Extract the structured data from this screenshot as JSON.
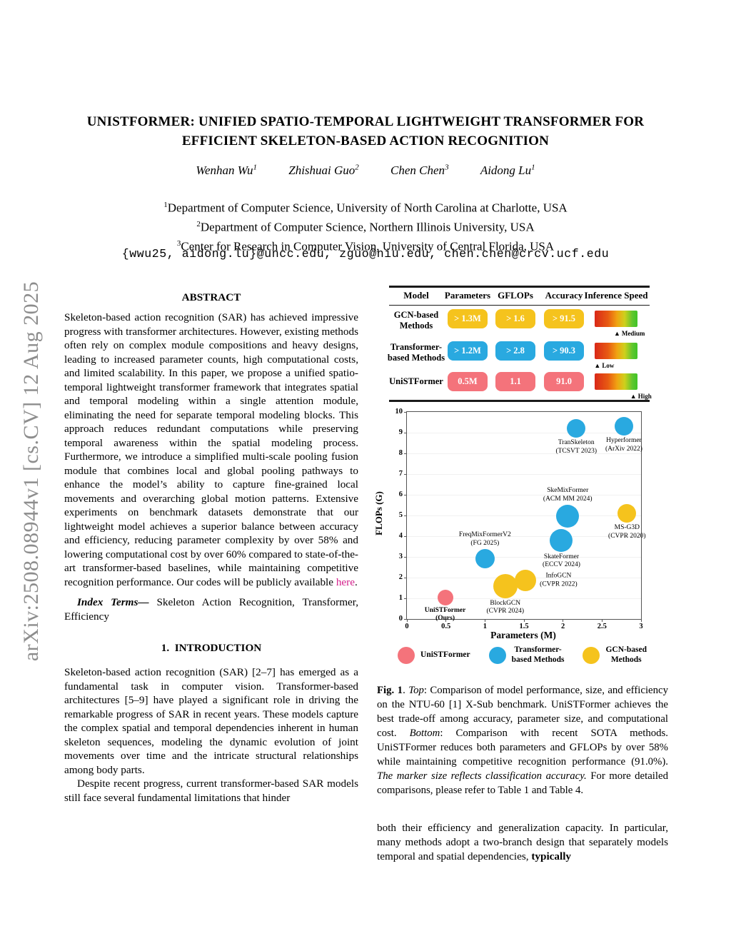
{
  "watermark": "arXiv:2508.08944v1 [cs.CV] 12 Aug 2025",
  "title_line1": "UNISTFORMER: UNIFIED SPATIO-TEMPORAL LIGHTWEIGHT TRANSFORMER FOR",
  "title_line2": "EFFICIENT SKELETON-BASED ACTION RECOGNITION",
  "authors": [
    {
      "name": "Wenhan Wu",
      "sup": "1"
    },
    {
      "name": "Zhishuai Guo",
      "sup": "2"
    },
    {
      "name": "Chen Chen",
      "sup": "3"
    },
    {
      "name": "Aidong Lu",
      "sup": "1"
    }
  ],
  "affiliations": [
    {
      "sup": "1",
      "text": "Department of Computer Science, University of North Carolina at Charlotte, USA"
    },
    {
      "sup": "2",
      "text": "Department of Computer Science, Northern Illinois University, USA"
    },
    {
      "sup": "3",
      "text": "Center for Research in Computer Vision, University of Central Florida, USA"
    }
  ],
  "emails": "{wwu25, aidong.lu}@uncc.edu, zguo@niu.edu, chen.chen@crcv.ucf.edu",
  "abstract": {
    "heading": "ABSTRACT",
    "body": "Skeleton-based action recognition (SAR) has achieved impressive progress with transformer architectures. However, existing methods often rely on complex module compositions and heavy designs, leading to increased parameter counts, high computational costs, and limited scalability. In this paper, we propose a unified spatio-temporal lightweight transformer framework that integrates spatial and temporal modeling within a single attention module, eliminating the need for separate temporal modeling blocks. This approach reduces redundant computations while preserving temporal awareness within the spatial modeling process. Furthermore, we introduce a simplified multi-scale pooling fusion module that combines local and global pooling pathways to enhance the model’s ability to capture fine-grained local movements and overarching global motion patterns. Extensive experiments on benchmark datasets demonstrate that our lightweight model achieves a superior balance between accuracy and efficiency, reducing parameter complexity by over 58% and lowering computational cost by over 60% compared to state-of-the-art transformer-based baselines, while maintaining competitive recognition performance. Our codes will be publicly available ",
    "link_text": "here",
    "after_link": ".",
    "index_label": "Index Terms—",
    "index_text": " Skeleton Action Recognition, Transformer, Efficiency"
  },
  "intro": {
    "heading": "1.  INTRODUCTION",
    "para1": "Skeleton-based action recognition (SAR) [2–7] has emerged as a fundamental task in computer vision. Transformer-based architectures [5–9] have played a significant role in driving the remarkable progress of SAR in recent years. These models capture the complex spatial and temporal dependencies inherent in human skeleton sequences, modeling the dynamic evolution of joint movements over time and the intricate structural relationships among body parts.",
    "para2": "Despite recent progress, current transformer-based SAR models still face several fundamental limitations that hinder"
  },
  "comparison_table": {
    "headers": [
      "Model",
      "Parameters",
      "GFLOPs",
      "Accuracy",
      "Inference Speed"
    ],
    "rows": [
      {
        "model_line1": "GCN-based",
        "model_line2": "Methods",
        "color": "#F5C31D",
        "parameters": "> 1.3M",
        "gflops": "> 1.6",
        "accuracy": "> 91.5",
        "speed_label": "Medium",
        "speed_pos": 50
      },
      {
        "model_line1": "Transformer-",
        "model_line2": "based Methods",
        "color": "#29A9E0",
        "parameters": "> 1.2M",
        "gflops": "> 2.8",
        "accuracy": "> 90.3",
        "speed_label": "Low",
        "speed_pos": 4
      },
      {
        "model_line1": "UniSTFormer",
        "model_line2": "",
        "color": "#F4737B",
        "parameters": "0.5M",
        "gflops": "1.1",
        "accuracy": "91.0",
        "speed_label": "High",
        "speed_pos": 88
      }
    ]
  },
  "chart_data": {
    "type": "scatter",
    "title": "",
    "xlabel": "Parameters (M)",
    "ylabel": "FLOPs (G)",
    "xlim": [
      0,
      3
    ],
    "ylim": [
      0,
      10
    ],
    "xticks": [
      "0",
      "0.5",
      "1",
      "1.5",
      "2",
      "2.5",
      "3"
    ],
    "yticks": [
      0,
      1,
      2,
      3,
      4,
      5,
      6,
      7,
      8,
      9,
      10
    ],
    "grid": "faint-horizontal",
    "legend_position": "bottom",
    "series_colors": {
      "ours": "#F4737B",
      "transformer": "#29A9E0",
      "gcn": "#F5C31D"
    },
    "points": [
      {
        "name": "UniSTFormer",
        "venue": "(Ours)",
        "group": "ours",
        "x": 0.49,
        "y": 1.05,
        "size": 22,
        "label_pos": "below",
        "bold": true
      },
      {
        "name": "BlockGCN",
        "venue": "(CVPR 2024)",
        "group": "gcn",
        "x": 1.26,
        "y": 1.6,
        "size": 34,
        "label_pos": "below",
        "bold": false
      },
      {
        "name": "InfoGCN",
        "venue": "(CVPR 2022)",
        "group": "gcn",
        "x": 1.52,
        "y": 1.85,
        "size": 30,
        "label_pos": "right",
        "bold": false
      },
      {
        "name": "FreqMixFormerV2",
        "venue": "(FG 2025)",
        "group": "transformer",
        "x": 1.0,
        "y": 2.9,
        "size": 27,
        "label_pos": "above",
        "bold": false
      },
      {
        "name": "SkateFormer",
        "venue": "(ECCV 2024)",
        "group": "transformer",
        "x": 1.98,
        "y": 3.8,
        "size": 32,
        "label_pos": "below",
        "bold": false
      },
      {
        "name": "SkeMixFormer",
        "venue": "(ACM MM 2024)",
        "group": "transformer",
        "x": 2.06,
        "y": 4.95,
        "size": 32,
        "label_pos": "above",
        "bold": false
      },
      {
        "name": "MS-G3D",
        "venue": "(CVPR 2020)",
        "group": "gcn",
        "x": 2.82,
        "y": 5.1,
        "size": 26,
        "label_pos": "below",
        "bold": false
      },
      {
        "name": "TranSkeleton",
        "venue": "(TCSVT 2023)",
        "group": "transformer",
        "x": 2.17,
        "y": 9.2,
        "size": 26,
        "label_pos": "below",
        "bold": false
      },
      {
        "name": "Hyperformer",
        "venue": "(ArXiv 2022)",
        "group": "transformer",
        "x": 2.78,
        "y": 9.3,
        "size": 26,
        "label_pos": "below",
        "bold": false
      }
    ],
    "legend": [
      {
        "line1": "UniSTFormer",
        "line2": "",
        "color": "#F4737B"
      },
      {
        "line1": "Transformer-",
        "line2": "based Methods",
        "color": "#29A9E0"
      },
      {
        "line1": "GCN-based",
        "line2": "Methods",
        "color": "#F5C31D"
      }
    ]
  },
  "caption": {
    "fig_label": "Fig. 1",
    "seg1": ".  ",
    "top_italic": "Top",
    "seg2": ": Comparison of model performance, size, and efficiency on the NTU-60 [1] X-Sub benchmark. UniSTFormer achieves the best trade-off among accuracy, parameter size, and computational cost. ",
    "bottom_italic": "Bottom",
    "seg3": ": Comparison with recent SOTA methods. UniSTFormer reduces both parameters and GFLOPs by over 58% while maintaining competitive recognition performance (91.0%). ",
    "italic2": "The marker size reflects classification accuracy.",
    "seg4": " For more detailed comparisons, please refer to Table 1 and Table 4."
  },
  "continuation": {
    "text": "both their efficiency and generalization capacity.  In particular, many methods adopt a two-branch design that separately models temporal and spatial dependencies, ",
    "bold": "typically"
  },
  "colors": {
    "link": "#d3208b",
    "rule": "#1a1a1a"
  }
}
